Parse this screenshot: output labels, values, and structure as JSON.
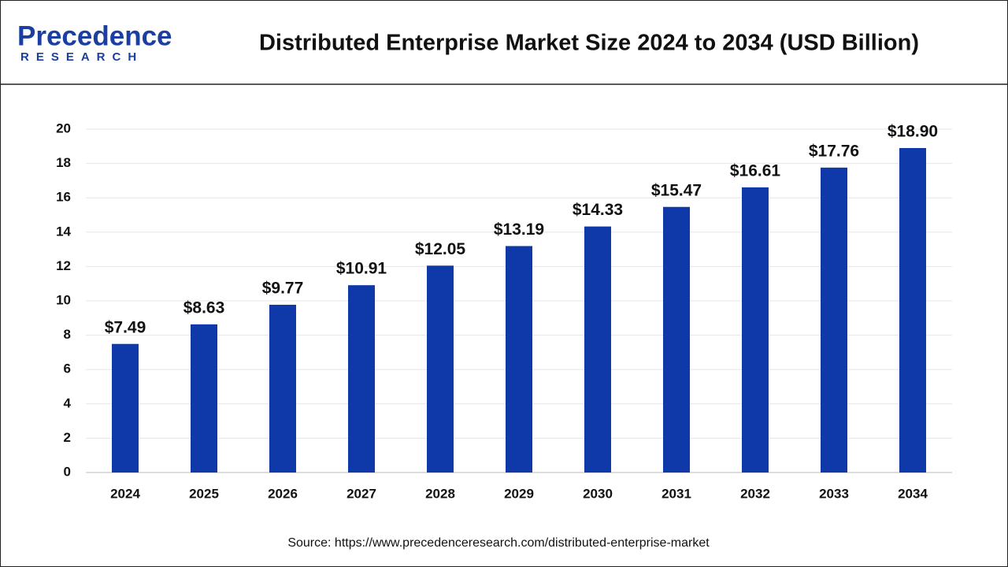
{
  "logo": {
    "name": "Precedence",
    "tagline": "RESEARCH"
  },
  "chart_data": {
    "type": "bar",
    "title": "Distributed Enterprise Market Size 2024 to 2034 (USD Billion)",
    "categories": [
      "2024",
      "2025",
      "2026",
      "2027",
      "2028",
      "2029",
      "2030",
      "2031",
      "2032",
      "2033",
      "2034"
    ],
    "values": [
      7.49,
      8.63,
      9.77,
      10.91,
      12.05,
      13.19,
      14.33,
      15.47,
      16.61,
      17.76,
      18.9
    ],
    "value_labels": [
      "$7.49",
      "$8.63",
      "$9.77",
      "$10.91",
      "$12.05",
      "$13.19",
      "$14.33",
      "$15.47",
      "$16.61",
      "$17.76",
      "$18.90"
    ],
    "color": "#0f38a8",
    "ylim": [
      0,
      20
    ],
    "yticks": [
      0,
      2,
      4,
      6,
      8,
      10,
      12,
      14,
      16,
      18,
      20
    ],
    "grid": true,
    "source": "Source: https://www.precedenceresearch.com/distributed-enterprise-market"
  }
}
